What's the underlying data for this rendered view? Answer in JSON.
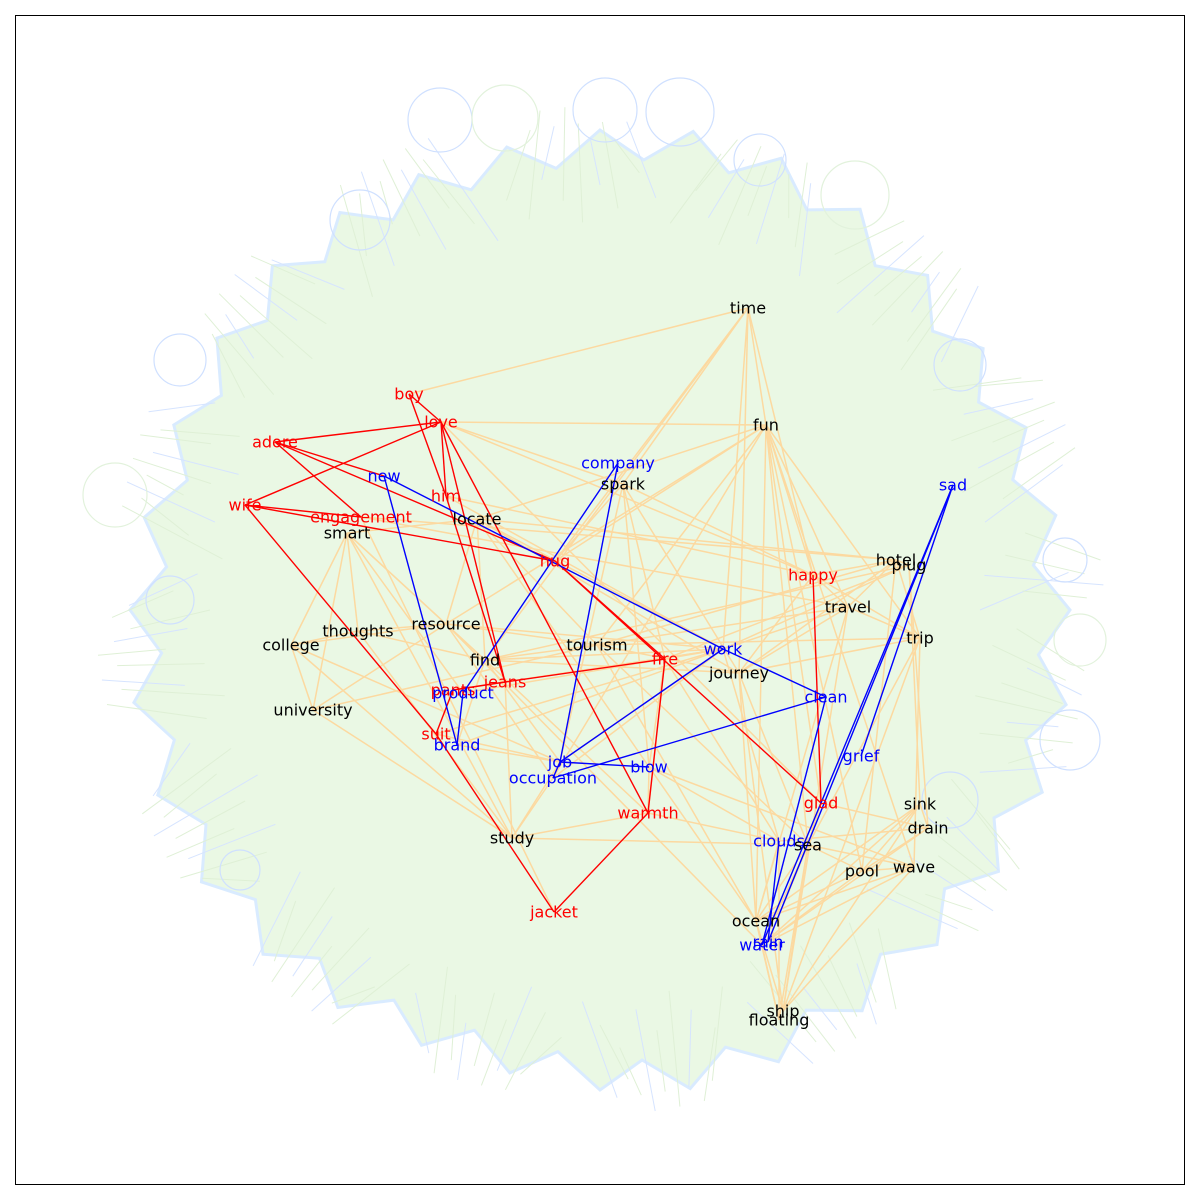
{
  "colors": {
    "background_cloud_fill": "#eaf8e4",
    "background_cloud_edge": "#d9ebff",
    "background_loop": "#cfe0ff",
    "relation_edge": "#fcd9a0",
    "red_edge": "#ff0000",
    "blue_edge": "#0000ff",
    "text_black": "#000000",
    "text_red": "#ff0000",
    "text_blue": "#0000ff"
  },
  "nodes": [
    {
      "id": "time",
      "label": "time",
      "color": "black"
    },
    {
      "id": "boy",
      "label": "boy",
      "color": "red"
    },
    {
      "id": "love",
      "label": "love",
      "color": "red"
    },
    {
      "id": "fun",
      "label": "fun",
      "color": "black"
    },
    {
      "id": "adore",
      "label": "adore",
      "color": "red"
    },
    {
      "id": "company",
      "label": "company",
      "color": "blue"
    },
    {
      "id": "new",
      "label": "new",
      "color": "blue"
    },
    {
      "id": "spark",
      "label": "spark",
      "color": "black"
    },
    {
      "id": "sad",
      "label": "sad",
      "color": "blue"
    },
    {
      "id": "him",
      "label": "him",
      "color": "red"
    },
    {
      "id": "wife",
      "label": "wife",
      "color": "red"
    },
    {
      "id": "engagement",
      "label": "engagement",
      "color": "red"
    },
    {
      "id": "locate",
      "label": "locate",
      "color": "black"
    },
    {
      "id": "smart",
      "label": "smart",
      "color": "black"
    },
    {
      "id": "hug",
      "label": "hug",
      "color": "red"
    },
    {
      "id": "hotel",
      "label": "hotel",
      "color": "black"
    },
    {
      "id": "plug",
      "label": "plug",
      "color": "black"
    },
    {
      "id": "happy",
      "label": "happy",
      "color": "red"
    },
    {
      "id": "travel",
      "label": "travel",
      "color": "black"
    },
    {
      "id": "resource",
      "label": "resource",
      "color": "black"
    },
    {
      "id": "thoughts",
      "label": "thoughts",
      "color": "black"
    },
    {
      "id": "trip",
      "label": "trip",
      "color": "black"
    },
    {
      "id": "college",
      "label": "college",
      "color": "black"
    },
    {
      "id": "tourism",
      "label": "tourism",
      "color": "black"
    },
    {
      "id": "work",
      "label": "work",
      "color": "blue"
    },
    {
      "id": "find",
      "label": "find",
      "color": "black"
    },
    {
      "id": "fire",
      "label": "fire",
      "color": "red"
    },
    {
      "id": "journey",
      "label": "journey",
      "color": "black"
    },
    {
      "id": "jeans",
      "label": "jeans",
      "color": "red"
    },
    {
      "id": "pants",
      "label": "pants",
      "color": "red"
    },
    {
      "id": "product",
      "label": "product",
      "color": "blue"
    },
    {
      "id": "clean",
      "label": "clean",
      "color": "blue"
    },
    {
      "id": "university",
      "label": "university",
      "color": "black"
    },
    {
      "id": "suit",
      "label": "suit",
      "color": "red"
    },
    {
      "id": "brand",
      "label": "brand",
      "color": "blue"
    },
    {
      "id": "grief",
      "label": "grief",
      "color": "blue"
    },
    {
      "id": "job",
      "label": "job",
      "color": "blue"
    },
    {
      "id": "blow",
      "label": "blow",
      "color": "blue"
    },
    {
      "id": "occupation",
      "label": "occupation",
      "color": "blue"
    },
    {
      "id": "glad",
      "label": "glad",
      "color": "red"
    },
    {
      "id": "sink",
      "label": "sink",
      "color": "black"
    },
    {
      "id": "warmth",
      "label": "warmth",
      "color": "red"
    },
    {
      "id": "drain",
      "label": "drain",
      "color": "black"
    },
    {
      "id": "study",
      "label": "study",
      "color": "black"
    },
    {
      "id": "clouds",
      "label": "clouds",
      "color": "blue"
    },
    {
      "id": "sea",
      "label": "sea",
      "color": "black"
    },
    {
      "id": "wave",
      "label": "wave",
      "color": "black"
    },
    {
      "id": "pool",
      "label": "pool",
      "color": "black"
    },
    {
      "id": "jacket",
      "label": "jacket",
      "color": "red"
    },
    {
      "id": "ocean",
      "label": "ocean",
      "color": "black"
    },
    {
      "id": "rain",
      "label": "rain",
      "color": "blue"
    },
    {
      "id": "water",
      "label": "water",
      "color": "blue"
    },
    {
      "id": "ship",
      "label": "ship",
      "color": "black"
    },
    {
      "id": "floating",
      "label": "floating",
      "color": "black"
    }
  ],
  "red_edges": [
    [
      "boy",
      "love"
    ],
    [
      "boy",
      "him"
    ],
    [
      "love",
      "adore"
    ],
    [
      "love",
      "wife"
    ],
    [
      "love",
      "him"
    ],
    [
      "love",
      "jeans"
    ],
    [
      "love",
      "warmth"
    ],
    [
      "adore",
      "new"
    ],
    [
      "adore",
      "engagement"
    ],
    [
      "adore",
      "hug"
    ],
    [
      "wife",
      "engagement"
    ],
    [
      "wife",
      "hug"
    ],
    [
      "wife",
      "suit"
    ],
    [
      "him",
      "jeans"
    ],
    [
      "hug",
      "fire"
    ],
    [
      "hug",
      "glad"
    ],
    [
      "fire",
      "warmth"
    ],
    [
      "suit",
      "pants"
    ],
    [
      "suit",
      "jacket"
    ],
    [
      "warmth",
      "jacket"
    ],
    [
      "pants",
      "jeans"
    ],
    [
      "happy",
      "glad"
    ],
    [
      "jeans",
      "fire"
    ]
  ],
  "blue_edges": [
    [
      "new",
      "work"
    ],
    [
      "new",
      "brand"
    ],
    [
      "product",
      "brand"
    ],
    [
      "product",
      "company"
    ],
    [
      "company",
      "job"
    ],
    [
      "work",
      "clean"
    ],
    [
      "work",
      "job"
    ],
    [
      "job",
      "blow"
    ],
    [
      "occupation",
      "clean"
    ],
    [
      "sad",
      "grief"
    ],
    [
      "sad",
      "rain"
    ],
    [
      "sad",
      "water"
    ],
    [
      "clean",
      "water"
    ],
    [
      "clouds",
      "rain"
    ],
    [
      "job",
      "occupation"
    ]
  ],
  "orange_edges": [
    [
      "time",
      "boy"
    ],
    [
      "time",
      "hug"
    ],
    [
      "time",
      "happy"
    ],
    [
      "time",
      "fun"
    ],
    [
      "time",
      "work"
    ],
    [
      "time",
      "spark"
    ],
    [
      "time",
      "journey"
    ],
    [
      "time",
      "find"
    ],
    [
      "fun",
      "love"
    ],
    [
      "fun",
      "hug"
    ],
    [
      "fun",
      "happy"
    ],
    [
      "fun",
      "glad"
    ],
    [
      "fun",
      "travel"
    ],
    [
      "fun",
      "tourism"
    ],
    [
      "fun",
      "locate"
    ],
    [
      "fun",
      "trip"
    ],
    [
      "fun",
      "pool"
    ],
    [
      "fun",
      "ocean"
    ],
    [
      "fun",
      "resource"
    ],
    [
      "fun",
      "occupation"
    ],
    [
      "fun",
      "sea"
    ],
    [
      "fun",
      "wave"
    ],
    [
      "spark",
      "fire"
    ],
    [
      "spark",
      "love"
    ],
    [
      "spark",
      "hug"
    ],
    [
      "spark",
      "job"
    ],
    [
      "spark",
      "happy"
    ],
    [
      "spark",
      "journey"
    ],
    [
      "spark",
      "blow"
    ],
    [
      "smart",
      "college"
    ],
    [
      "smart",
      "university"
    ],
    [
      "smart",
      "thoughts"
    ],
    [
      "smart",
      "study"
    ],
    [
      "smart",
      "find"
    ],
    [
      "smart",
      "resource"
    ],
    [
      "smart",
      "locate"
    ],
    [
      "smart",
      "product"
    ],
    [
      "engagement",
      "hotel"
    ],
    [
      "engagement",
      "travel"
    ],
    [
      "engagement",
      "jacket"
    ],
    [
      "locate",
      "find"
    ],
    [
      "locate",
      "resource"
    ],
    [
      "locate",
      "hotel"
    ],
    [
      "locate",
      "work"
    ],
    [
      "locate",
      "tourism"
    ],
    [
      "locate",
      "journey"
    ],
    [
      "locate",
      "ocean"
    ],
    [
      "thoughts",
      "college"
    ],
    [
      "thoughts",
      "find"
    ],
    [
      "thoughts",
      "study"
    ],
    [
      "thoughts",
      "resource"
    ],
    [
      "resource",
      "tourism"
    ],
    [
      "resource",
      "find"
    ],
    [
      "resource",
      "work"
    ],
    [
      "resource",
      "water"
    ],
    [
      "resource",
      "occupation"
    ],
    [
      "college",
      "university"
    ],
    [
      "college",
      "study"
    ],
    [
      "college",
      "job"
    ],
    [
      "college",
      "resource"
    ],
    [
      "university",
      "study"
    ],
    [
      "university",
      "resource"
    ],
    [
      "university",
      "tourism"
    ],
    [
      "tourism",
      "travel"
    ],
    [
      "tourism",
      "trip"
    ],
    [
      "tourism",
      "journey"
    ],
    [
      "tourism",
      "hotel"
    ],
    [
      "tourism",
      "sea"
    ],
    [
      "tourism",
      "ocean"
    ],
    [
      "tourism",
      "find"
    ],
    [
      "travel",
      "trip"
    ],
    [
      "travel",
      "journey"
    ],
    [
      "travel",
      "hotel"
    ],
    [
      "travel",
      "ship"
    ],
    [
      "travel",
      "ocean"
    ],
    [
      "travel",
      "work"
    ],
    [
      "trip",
      "journey"
    ],
    [
      "trip",
      "hotel"
    ],
    [
      "trip",
      "sea"
    ],
    [
      "trip",
      "ship"
    ],
    [
      "trip",
      "wave"
    ],
    [
      "hotel",
      "plug"
    ],
    [
      "hotel",
      "journey"
    ],
    [
      "hotel",
      "pool"
    ],
    [
      "plug",
      "drain"
    ],
    [
      "plug",
      "sink"
    ],
    [
      "plug",
      "work"
    ],
    [
      "plug",
      "find"
    ],
    [
      "plug",
      "fire"
    ],
    [
      "journey",
      "ship"
    ],
    [
      "journey",
      "ocean"
    ],
    [
      "journey",
      "sea"
    ],
    [
      "journey",
      "find"
    ],
    [
      "find",
      "job"
    ],
    [
      "find",
      "work"
    ],
    [
      "find",
      "brand"
    ],
    [
      "find",
      "warmth"
    ],
    [
      "job",
      "study"
    ],
    [
      "job",
      "work"
    ],
    [
      "occupation",
      "study"
    ],
    [
      "occupation",
      "work"
    ],
    [
      "blow",
      "wave"
    ],
    [
      "blow",
      "fire"
    ],
    [
      "blow",
      "clouds"
    ],
    [
      "blow",
      "warmth"
    ],
    [
      "glad",
      "sea"
    ],
    [
      "glad",
      "drain"
    ],
    [
      "sink",
      "drain"
    ],
    [
      "sink",
      "water"
    ],
    [
      "sink",
      "ship"
    ],
    [
      "sink",
      "ocean"
    ],
    [
      "sink",
      "pool"
    ],
    [
      "drain",
      "water"
    ],
    [
      "drain",
      "pool"
    ],
    [
      "drain",
      "clouds"
    ],
    [
      "wave",
      "sea"
    ],
    [
      "wave",
      "ocean"
    ],
    [
      "wave",
      "pool"
    ],
    [
      "wave",
      "water"
    ],
    [
      "wave",
      "ship"
    ],
    [
      "pool",
      "water"
    ],
    [
      "pool",
      "sea"
    ],
    [
      "pool",
      "ocean"
    ],
    [
      "sea",
      "ocean"
    ],
    [
      "sea",
      "ship"
    ],
    [
      "sea",
      "floating"
    ],
    [
      "sea",
      "water"
    ],
    [
      "sea",
      "rain"
    ],
    [
      "ocean",
      "ship"
    ],
    [
      "ocean",
      "floating"
    ],
    [
      "water",
      "floating"
    ],
    [
      "clouds",
      "floating"
    ],
    [
      "clouds",
      "work"
    ],
    [
      "clouds",
      "fire"
    ],
    [
      "clouds",
      "ocean"
    ],
    [
      "happy",
      "hotel"
    ],
    [
      "happy",
      "trip"
    ],
    [
      "happy",
      "travel"
    ],
    [
      "happy",
      "journey"
    ],
    [
      "warmth",
      "fire"
    ],
    [
      "warmth",
      "study"
    ],
    [
      "warmth",
      "clouds"
    ],
    [
      "study",
      "sea"
    ],
    [
      "jeans",
      "work"
    ],
    [
      "jeans",
      "study"
    ],
    [
      "pants",
      "work"
    ],
    [
      "product",
      "work"
    ],
    [
      "brand",
      "job"
    ],
    [
      "brand",
      "work"
    ],
    [
      "suit",
      "work"
    ],
    [
      "suit",
      "job"
    ],
    [
      "love",
      "happy"
    ],
    [
      "love",
      "glad"
    ],
    [
      "him",
      "work"
    ],
    [
      "him",
      "happy"
    ]
  ]
}
